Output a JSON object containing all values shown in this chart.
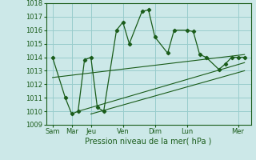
{
  "xlabel": "Pression niveau de la mer( hPa )",
  "ylim": [
    1009,
    1018
  ],
  "xlim": [
    0,
    16
  ],
  "yticks": [
    1009,
    1010,
    1011,
    1012,
    1013,
    1014,
    1015,
    1016,
    1017,
    1018
  ],
  "day_labels": [
    "Sam",
    "Mar",
    "Jeu",
    "Ven",
    "Dim",
    "Lun",
    "Mer"
  ],
  "day_positions": [
    0.5,
    2.0,
    3.5,
    6.0,
    8.5,
    11.0,
    15.0
  ],
  "bg_color": "#cce8e8",
  "grid_color": "#99cccc",
  "line_color": "#1a5c1a",
  "series0_x": [
    0.5,
    1.5,
    2.0,
    2.5,
    3.0,
    3.5,
    4.0,
    4.5,
    5.5,
    6.0,
    6.5,
    7.5,
    8.0,
    8.5,
    9.5,
    10.0,
    11.0,
    11.5,
    12.0,
    12.5,
    13.5,
    14.0,
    14.5,
    15.0,
    15.5
  ],
  "series0_y": [
    1014,
    1011,
    1009.8,
    1010,
    1013.8,
    1014,
    1010.3,
    1010,
    1016,
    1016.6,
    1015,
    1017.4,
    1017.5,
    1015.5,
    1014.3,
    1016,
    1016,
    1015.9,
    1014.2,
    1014,
    1013.1,
    1013.5,
    1014,
    1014,
    1014
  ],
  "line1_x": [
    0.5,
    15.5
  ],
  "line1_y": [
    1012.5,
    1014.2
  ],
  "line2_x": [
    2.5,
    15.5
  ],
  "line2_y": [
    1010,
    1013.6
  ],
  "line3_x": [
    3.5,
    15.5
  ],
  "line3_y": [
    1009.8,
    1013.0
  ]
}
